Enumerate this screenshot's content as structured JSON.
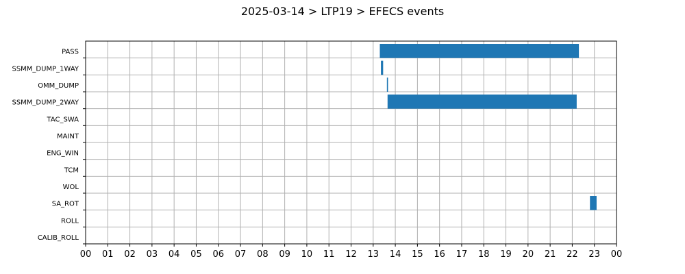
{
  "chart_data": {
    "type": "bar",
    "orientation": "horizontal-timeline",
    "title": "2025-03-14 > LTP19 > EFECS events",
    "xlabel": "",
    "ylabel": "",
    "xlim": [
      0,
      24
    ],
    "x_tick_labels": [
      "00",
      "01",
      "02",
      "03",
      "04",
      "05",
      "06",
      "07",
      "08",
      "09",
      "10",
      "11",
      "12",
      "13",
      "14",
      "15",
      "16",
      "17",
      "18",
      "19",
      "20",
      "21",
      "22",
      "23",
      "00"
    ],
    "categories": [
      "PASS",
      "SSMM_DUMP_1WAY",
      "OMM_DUMP",
      "SSMM_DUMP_2WAY",
      "TAC_SWA",
      "MAINT",
      "ENG_WIN",
      "TCM",
      "WOL",
      "SA_ROT",
      "ROLL",
      "CALIB_ROLL"
    ],
    "series": [
      {
        "values": [
          [
            [
              13.3,
              22.3
            ]
          ],
          [
            [
              13.35,
              13.45
            ]
          ],
          [
            [
              13.62,
              13.67
            ]
          ],
          [
            [
              13.65,
              22.2
            ]
          ],
          [],
          [],
          [],
          [],
          [],
          [
            [
              22.8,
              23.1
            ]
          ],
          [],
          []
        ]
      }
    ],
    "color": "#1f77b4",
    "grid": true,
    "legend": "none"
  }
}
